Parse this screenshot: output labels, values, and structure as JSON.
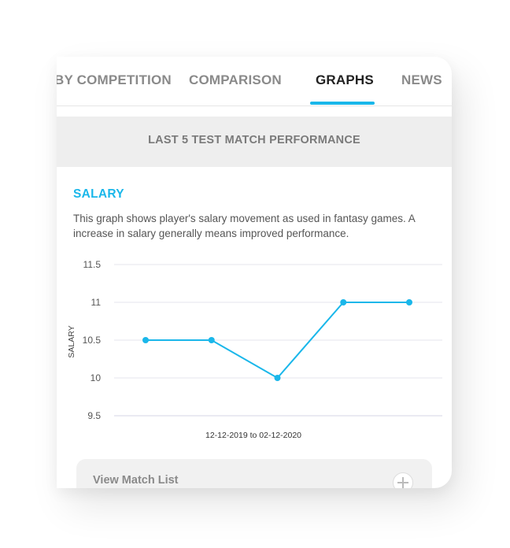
{
  "tabs": [
    {
      "label": "BY COMPETITION",
      "active": false
    },
    {
      "label": "COMPARISON",
      "active": false
    },
    {
      "label": "GRAPHS",
      "active": true
    },
    {
      "label": "NEWS",
      "active": false
    }
  ],
  "section_header": "LAST 5 TEST MATCH PERFORMANCE",
  "salary": {
    "title": "SALARY",
    "description": "This graph shows player's salary movement as used in fantasy games. A increase in salary generally means improved performance."
  },
  "chart_data": {
    "type": "line",
    "ylabel": "SALARY",
    "xlabel": "12-12-2019 to 02-12-2020",
    "x": [
      1,
      2,
      3,
      4,
      5
    ],
    "series": [
      {
        "values": [
          10.5,
          10.5,
          10,
          11,
          11
        ]
      }
    ],
    "ylim": [
      9.5,
      11.5
    ],
    "yticks": [
      "11.5",
      "11",
      "10.5",
      "10",
      "9.5"
    ],
    "grid": true,
    "color": "#1ab7ea"
  },
  "view_match_list": {
    "label": "View Match List"
  },
  "colors": {
    "accent": "#1ab7ea",
    "header_bg": "#eeeeee"
  }
}
